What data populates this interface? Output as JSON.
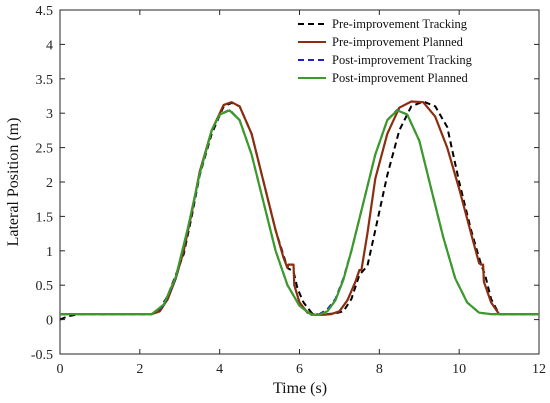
{
  "chart_data": {
    "type": "line",
    "xlabel": "Time (s)",
    "ylabel": "Lateral Position (m)",
    "xlim": [
      0,
      12
    ],
    "ylim": [
      -0.5,
      4.5
    ],
    "xticks": [
      0,
      2,
      4,
      6,
      8,
      10,
      12
    ],
    "yticks": [
      -0.5,
      0,
      0.5,
      1,
      1.5,
      2,
      2.5,
      3,
      3.5,
      4,
      4.5
    ],
    "grid": false,
    "legend_position": "top-right",
    "series": [
      {
        "name": "Pre-improvement Tracking",
        "color": "#000000",
        "style": "dashed",
        "x": [
          0,
          0.2,
          0.5,
          1,
          2.3,
          2.5,
          2.7,
          2.9,
          3.1,
          3.3,
          3.5,
          3.8,
          4.1,
          4.3,
          4.5,
          4.8,
          5.1,
          5.4,
          5.7,
          5.85,
          5.95,
          6.1,
          6.3,
          6.5,
          6.7,
          6.9,
          7.1,
          7.3,
          7.5,
          7.7,
          7.9,
          8.2,
          8.5,
          8.8,
          9.1,
          9.4,
          9.7,
          10.0,
          10.3,
          10.55,
          10.65,
          10.8,
          11.0,
          11.3,
          12
        ],
        "y": [
          0,
          0.05,
          0.08,
          0.08,
          0.08,
          0.15,
          0.35,
          0.65,
          0.95,
          1.5,
          2.1,
          2.7,
          3.1,
          3.15,
          3.1,
          2.7,
          2.0,
          1.3,
          0.75,
          0.7,
          0.45,
          0.25,
          0.1,
          0.07,
          0.08,
          0.09,
          0.12,
          0.3,
          0.65,
          0.78,
          1.3,
          2.1,
          2.75,
          3.1,
          3.17,
          3.1,
          2.8,
          2.0,
          1.3,
          0.8,
          0.65,
          0.3,
          0.08,
          0.08,
          0.08
        ]
      },
      {
        "name": "Pre-improvement Planned",
        "color": "#8B2E10",
        "style": "solid",
        "x": [
          0,
          1,
          2.3,
          2.5,
          2.7,
          2.9,
          3.1,
          3.3,
          3.5,
          3.8,
          4.1,
          4.3,
          4.5,
          4.8,
          5.1,
          5.4,
          5.6,
          5.7,
          5.72,
          5.85,
          5.87,
          6.0,
          6.2,
          6.4,
          6.6,
          6.8,
          7.0,
          7.2,
          7.4,
          7.5,
          7.55,
          7.7,
          7.9,
          8.2,
          8.5,
          8.8,
          9.1,
          9.4,
          9.7,
          10.0,
          10.3,
          10.5,
          10.55,
          10.6,
          10.62,
          10.8,
          11.0,
          11.3,
          12
        ],
        "y": [
          0.08,
          0.08,
          0.08,
          0.12,
          0.3,
          0.6,
          1.0,
          1.55,
          2.15,
          2.75,
          3.12,
          3.16,
          3.1,
          2.7,
          2.0,
          1.3,
          0.9,
          0.75,
          0.8,
          0.8,
          0.5,
          0.25,
          0.1,
          0.07,
          0.07,
          0.08,
          0.12,
          0.28,
          0.55,
          0.72,
          0.72,
          1.25,
          2.05,
          2.7,
          3.08,
          3.17,
          3.16,
          2.95,
          2.5,
          1.9,
          1.25,
          0.82,
          0.8,
          0.8,
          0.55,
          0.25,
          0.08,
          0.08,
          0.08
        ]
      },
      {
        "name": "Post-improvement Tracking",
        "color": "#1F1FCC",
        "style": "dashed",
        "x": [
          0,
          1,
          2.3,
          2.6,
          2.9,
          3.2,
          3.5,
          3.8,
          4.0,
          4.25,
          4.5,
          4.8,
          5.1,
          5.4,
          5.7,
          6.0,
          6.3,
          6.5,
          6.7,
          6.9,
          7.1,
          7.3,
          7.6,
          7.9,
          8.2,
          8.45,
          8.7,
          9.0,
          9.3,
          9.6,
          9.9,
          10.2,
          10.5,
          10.8,
          11.0,
          12
        ],
        "y": [
          0.08,
          0.08,
          0.08,
          0.2,
          0.6,
          1.3,
          2.1,
          2.75,
          2.98,
          3.05,
          2.9,
          2.4,
          1.7,
          1.0,
          0.5,
          0.2,
          0.07,
          0.08,
          0.15,
          0.3,
          0.6,
          1.0,
          1.7,
          2.4,
          2.9,
          3.05,
          2.98,
          2.6,
          1.9,
          1.2,
          0.6,
          0.25,
          0.1,
          0.08,
          0.08,
          0.08
        ]
      },
      {
        "name": "Post-improvement Planned",
        "color": "#3C9A28",
        "style": "solid",
        "x": [
          0,
          1,
          2.3,
          2.6,
          2.9,
          3.2,
          3.5,
          3.8,
          4.0,
          4.25,
          4.5,
          4.8,
          5.1,
          5.4,
          5.7,
          6.0,
          6.3,
          6.5,
          6.7,
          6.9,
          7.1,
          7.3,
          7.6,
          7.9,
          8.2,
          8.45,
          8.7,
          9.0,
          9.3,
          9.6,
          9.9,
          10.2,
          10.5,
          10.8,
          11.0,
          12
        ],
        "y": [
          0.08,
          0.08,
          0.08,
          0.22,
          0.62,
          1.32,
          2.12,
          2.75,
          2.98,
          3.04,
          2.9,
          2.4,
          1.7,
          1.0,
          0.5,
          0.2,
          0.07,
          0.07,
          0.12,
          0.28,
          0.58,
          1.0,
          1.7,
          2.4,
          2.9,
          3.04,
          2.98,
          2.6,
          1.9,
          1.2,
          0.6,
          0.25,
          0.1,
          0.08,
          0.08,
          0.08
        ]
      }
    ]
  }
}
